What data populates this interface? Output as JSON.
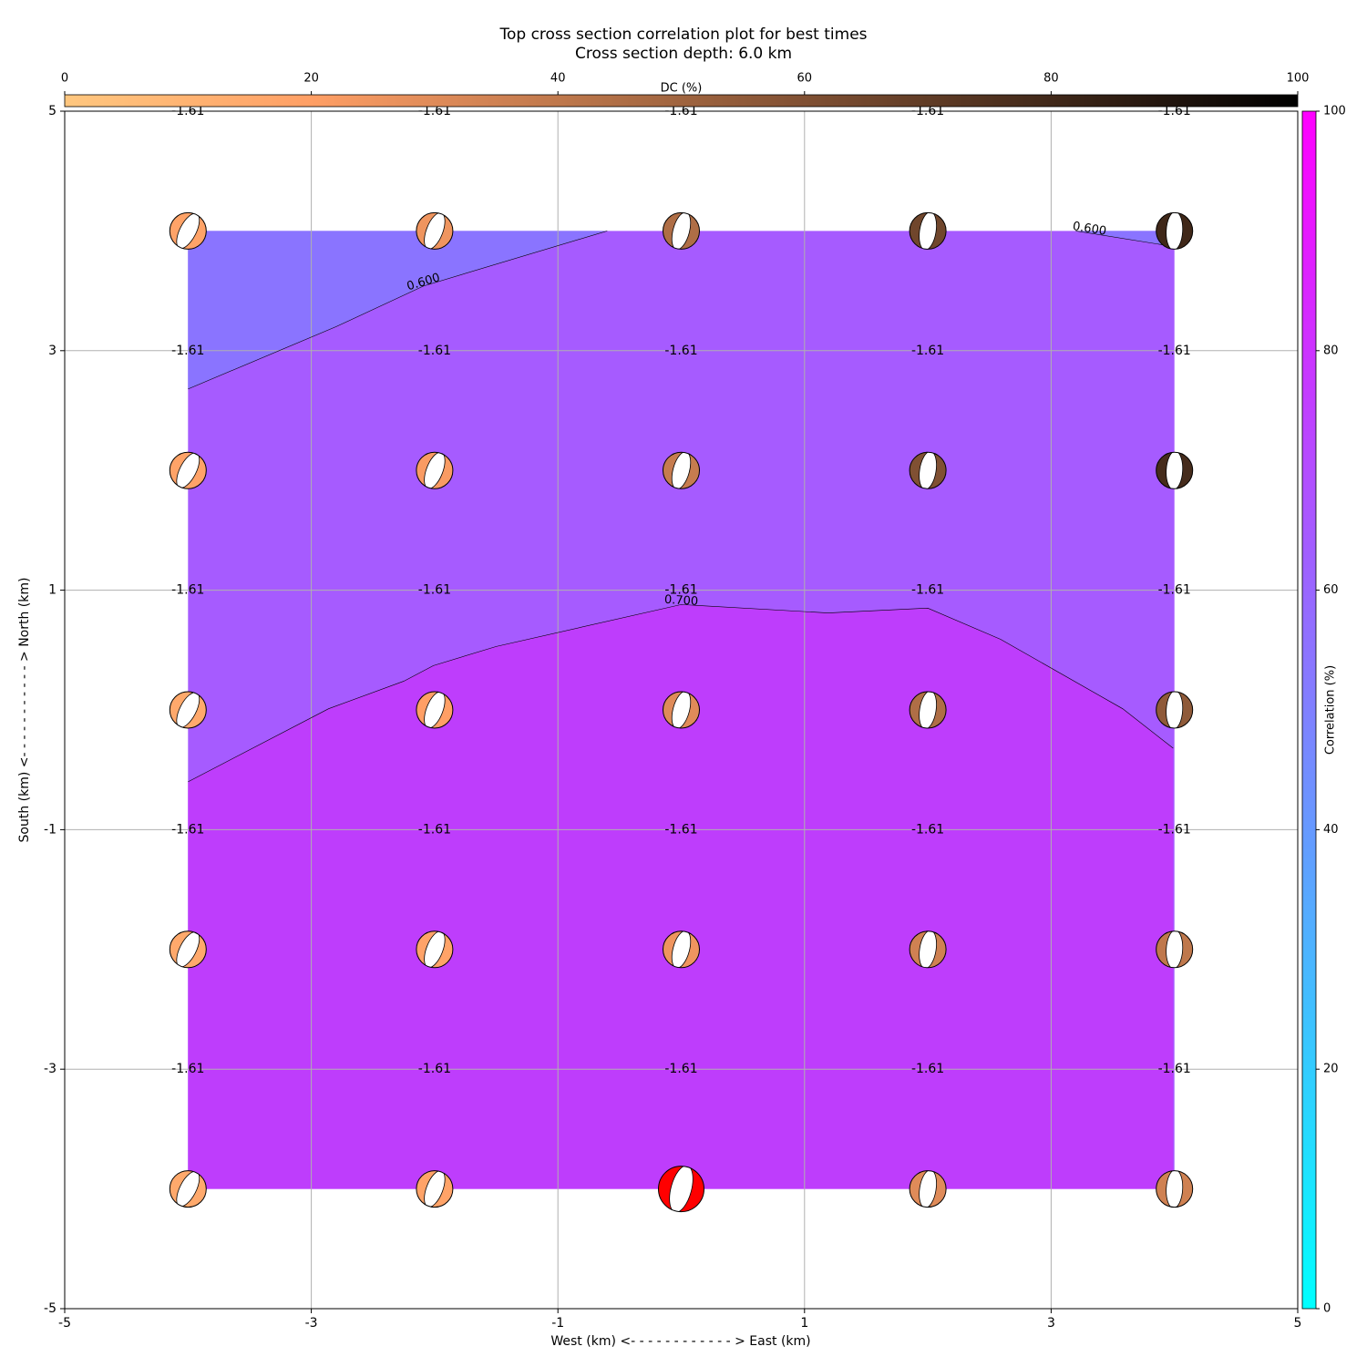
{
  "chart_data": {
    "type": "scatter",
    "title": "Top cross section correlation plot for best times",
    "subtitle": "Cross section depth: 6.0 km",
    "xlabel": "West (km) <- - - - - - - - - - - - > East (km)",
    "ylabel": "South (km) <- - - - - - - - - - - > North (km)",
    "xlim": [
      -5,
      5
    ],
    "ylim": [
      -5,
      5
    ],
    "xticks": [
      -5,
      -3,
      -1,
      1,
      3,
      5
    ],
    "yticks": [
      -5,
      -3,
      -1,
      1,
      3,
      5
    ],
    "grid": true,
    "points": {
      "x": [
        -4,
        -2,
        0,
        2,
        4,
        -4,
        -2,
        0,
        2,
        4,
        -4,
        -2,
        0,
        2,
        4,
        -4,
        -2,
        0,
        2,
        4,
        -4,
        -2,
        0,
        2,
        4
      ],
      "y": [
        4,
        4,
        4,
        4,
        4,
        2,
        2,
        2,
        2,
        2,
        0,
        0,
        0,
        0,
        0,
        -2,
        -2,
        -2,
        -2,
        -2,
        -4,
        -4,
        -4,
        -4,
        -4
      ],
      "dc": [
        18,
        25,
        45,
        65,
        80,
        18,
        22,
        38,
        60,
        78,
        15,
        20,
        30,
        45,
        55,
        15,
        18,
        25,
        35,
        40,
        15,
        18,
        25,
        30,
        35
      ],
      "labels": [
        -1.61,
        -1.61,
        -1.61,
        -1.61,
        -1.61,
        -1.61,
        -1.61,
        -1.61,
        -1.61,
        -1.61,
        -1.61,
        -1.61,
        -1.61,
        -1.61,
        -1.61,
        -1.61,
        -1.61,
        -1.61,
        -1.61,
        -1.61,
        -1.61,
        -1.61,
        -1.61,
        -1.61,
        -1.61
      ],
      "best_index": 22,
      "best_color": "#ff0000"
    },
    "base_fill": {
      "correlation": 65,
      "color": "#a65bff"
    },
    "contours": [
      {
        "level": 0.6,
        "label": "0.600",
        "x": [
          -4.0,
          -2.8,
          -2.09,
          -0.6
        ],
        "y": [
          2.68,
          3.2,
          3.54,
          4.0
        ],
        "fill_side": "above",
        "fill_color": "#8a74ff",
        "fill_correlation": 54
      },
      {
        "level": 0.6,
        "label": "0.600",
        "x": [
          3.2,
          3.99
        ],
        "y": [
          4.0,
          3.87
        ],
        "fill_side": "above",
        "fill_color": "#8a74ff",
        "fill_correlation": 54
      },
      {
        "level": 0.7,
        "label": "0.700",
        "x": [
          -4.0,
          -2.86,
          -2.25,
          -2.01,
          -1.5,
          0.0,
          1.19,
          2.0,
          2.59,
          3.58,
          3.99
        ],
        "y": [
          -0.6,
          0.01,
          0.24,
          0.37,
          0.53,
          0.88,
          0.81,
          0.85,
          0.59,
          0.01,
          -0.32
        ],
        "fill_side": "below",
        "fill_color": "#be3dfc",
        "fill_correlation": 75
      }
    ],
    "dc_colorbar": {
      "label": "DC (%)",
      "colormap": "copper_r",
      "lim": [
        0,
        100
      ],
      "ticks": [
        0,
        20,
        40,
        60,
        80,
        100
      ]
    },
    "corr_colorbar": {
      "label": "Correlation (%)",
      "colormap": "cool",
      "lim": [
        0,
        100
      ],
      "ticks": [
        0,
        20,
        40,
        60,
        80,
        100
      ]
    }
  }
}
